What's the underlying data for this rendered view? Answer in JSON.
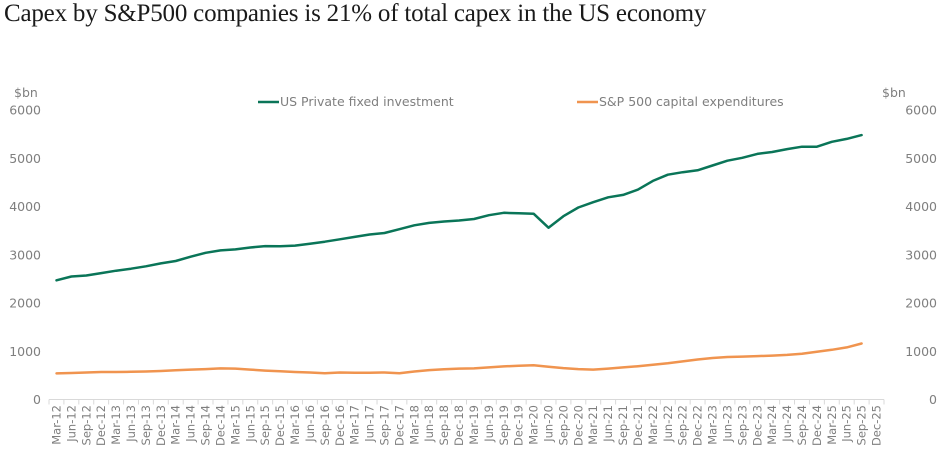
{
  "page_title": "Capex by S&P500 companies is 21% of total capex in the US economy",
  "chart_data": {
    "type": "line",
    "title": "Capex by S&P500 companies is 21% of total capex in the US economy",
    "xlabel": "",
    "ylabel_left": "$bn",
    "ylabel_right": "$bn",
    "ylim": [
      0,
      6000
    ],
    "yticks": [
      0,
      1000,
      2000,
      3000,
      4000,
      5000,
      6000
    ],
    "grid": false,
    "legend_position": "top",
    "categories": [
      "Mar-12",
      "Jun-12",
      "Sep-12",
      "Dec-12",
      "Mar-13",
      "Jun-13",
      "Sep-13",
      "Dec-13",
      "Mar-14",
      "Jun-14",
      "Sep-14",
      "Dec-14",
      "Mar-15",
      "Jun-15",
      "Sep-15",
      "Dec-15",
      "Mar-16",
      "Jun-16",
      "Sep-16",
      "Dec-16",
      "Mar-17",
      "Jun-17",
      "Sep-17",
      "Dec-17",
      "Mar-18",
      "Jun-18",
      "Sep-18",
      "Dec-18",
      "Mar-19",
      "Jun-19",
      "Sep-19",
      "Dec-19",
      "Mar-20",
      "Jun-20",
      "Sep-20",
      "Dec-20",
      "Mar-21",
      "Jun-21",
      "Sep-21",
      "Dec-21",
      "Mar-22",
      "Jun-22",
      "Sep-22",
      "Dec-22",
      "Mar-23",
      "Jun-23",
      "Sep-23",
      "Dec-23",
      "Mar-24",
      "Jun-24",
      "Sep-24",
      "Dec-24",
      "Mar-25",
      "Jun-25",
      "Sep-25",
      "Dec-25"
    ],
    "series": [
      {
        "name": "US Private fixed investment",
        "color": "#0a7558",
        "values": [
          2470,
          2550,
          2570,
          2620,
          2670,
          2710,
          2760,
          2820,
          2870,
          2960,
          3040,
          3090,
          3110,
          3150,
          3180,
          3175,
          3190,
          3230,
          3270,
          3320,
          3370,
          3420,
          3450,
          3530,
          3610,
          3660,
          3690,
          3710,
          3740,
          3820,
          3870,
          3860,
          3850,
          3560,
          3800,
          3980,
          4090,
          4190,
          4240,
          4350,
          4530,
          4660,
          4710,
          4750,
          4850,
          4950,
          5010,
          5090,
          5130,
          5190,
          5240,
          5240,
          5340,
          5400,
          5480,
          null
        ]
      },
      {
        "name": "S&P 500 capital expenditures",
        "color": "#f0944f",
        "values": [
          540,
          550,
          560,
          570,
          570,
          575,
          580,
          590,
          605,
          620,
          630,
          645,
          640,
          620,
          600,
          585,
          570,
          560,
          545,
          560,
          555,
          555,
          560,
          545,
          580,
          610,
          625,
          640,
          645,
          665,
          685,
          700,
          710,
          680,
          650,
          630,
          620,
          640,
          665,
          690,
          720,
          750,
          790,
          830,
          860,
          880,
          890,
          900,
          910,
          925,
          950,
          990,
          1030,
          1080,
          1160,
          null
        ]
      }
    ]
  }
}
